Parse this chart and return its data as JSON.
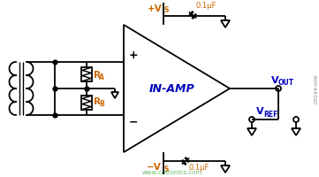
{
  "bg_color": "#ffffff",
  "line_color": "#000000",
  "label_color": "#0000bb",
  "orange_color": "#cc6600",
  "green_text_color": "#44aa44",
  "gray_text_color": "#888888",
  "inamp_label": "IN-AMP",
  "cap_label": "0.1μF",
  "vout_label": "V",
  "vout_sub": "OUT",
  "vref_label": "V",
  "vref_sub": "REF",
  "watermark": "www.cntronics.com",
  "fig_id": "07034-006",
  "figsize": [
    3.61,
    2.0
  ],
  "dpi": 100
}
